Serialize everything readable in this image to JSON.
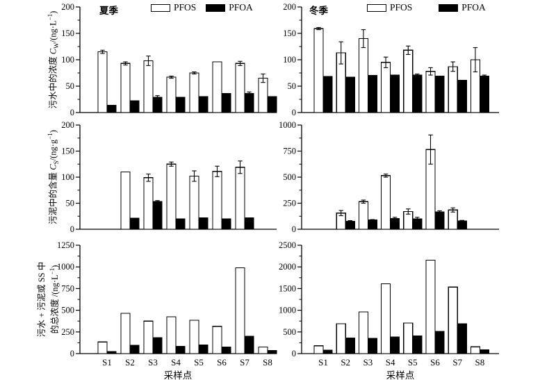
{
  "figure": {
    "xlabel": "采样点",
    "legend": {
      "pfos": "PFOS",
      "pfoa": "PFOA"
    },
    "seasons": {
      "summer": "夏季",
      "winter": "冬季"
    },
    "colors": {
      "pfos_fill": "#ffffff",
      "pfoa_fill": "#000000",
      "stroke": "#000000"
    },
    "ylabels": {
      "row1": {
        "prefix": "污水中的浓度 ",
        "var": "C",
        "sub": "W",
        "mid": "/(ng·L",
        "sup": "−1",
        "suffix": ")"
      },
      "row2": {
        "prefix": "污泥中的含量 ",
        "var": "C",
        "sub": "S",
        "mid": "/(ng·g",
        "sup": "−1",
        "suffix": ")"
      },
      "row3": {
        "line1": "污水 + 污泥或 SS 中",
        "line2_prefix": "的总浓度 /(ng·L",
        "sup": "−1",
        "suffix": ")"
      }
    }
  },
  "chart_data": [
    {
      "id": "wastewater-summer",
      "type": "bar",
      "season": "夏季",
      "ylabel": "污水中的浓度 C_W/(ng·L⁻¹)",
      "ylim": [
        0,
        200
      ],
      "yticks": [
        0,
        50,
        100,
        150,
        200
      ],
      "categories": [
        "S1",
        "S2",
        "S3",
        "S4",
        "S5",
        "S6",
        "S7",
        "S8"
      ],
      "series": [
        {
          "name": "PFOS",
          "fill": "#ffffff",
          "values": [
            115,
            93,
            98,
            67,
            75,
            96,
            93,
            65
          ],
          "errors": [
            3,
            3,
            9,
            2,
            2,
            1,
            4,
            8
          ]
        },
        {
          "name": "PFOA",
          "fill": "#000000",
          "values": [
            14,
            22,
            29,
            29,
            30,
            36,
            36,
            30
          ],
          "errors": [
            1,
            1,
            3,
            1,
            1,
            1,
            3,
            1
          ]
        }
      ],
      "show_x_labels": false
    },
    {
      "id": "wastewater-winter",
      "type": "bar",
      "season": "冬季",
      "ylabel": "污水中的浓度 C_W/(ng·L⁻¹)",
      "ylim": [
        0,
        200
      ],
      "yticks": [
        0,
        50,
        100,
        150,
        200
      ],
      "categories": [
        "S1",
        "S2",
        "S3",
        "S4",
        "S5",
        "S6",
        "S7",
        "S8"
      ],
      "series": [
        {
          "name": "PFOS",
          "fill": "#ffffff",
          "values": [
            159,
            113,
            140,
            95,
            118,
            78,
            87,
            100
          ],
          "errors": [
            2,
            21,
            17,
            10,
            8,
            7,
            9,
            23
          ]
        },
        {
          "name": "PFOA",
          "fill": "#000000",
          "values": [
            68,
            67,
            70,
            71,
            71,
            69,
            61,
            69
          ],
          "errors": [
            1,
            1,
            1,
            1,
            2,
            1,
            1,
            2
          ]
        }
      ],
      "show_x_labels": false
    },
    {
      "id": "sludge-summer",
      "type": "bar",
      "ylabel": "污泥中的含量 C_S/(ng·g⁻¹)",
      "ylim": [
        0,
        200
      ],
      "yticks": [
        0,
        50,
        100,
        150,
        200
      ],
      "categories": [
        "S1",
        "S2",
        "S3",
        "S4",
        "S5",
        "S6",
        "S7",
        "S8"
      ],
      "series": [
        {
          "name": "PFOS",
          "fill": "#ffffff",
          "values": [
            0,
            110,
            99,
            125,
            102,
            111,
            119,
            0
          ],
          "errors": [
            0,
            0,
            7,
            4,
            10,
            10,
            12,
            0
          ]
        },
        {
          "name": "PFOA",
          "fill": "#000000",
          "values": [
            0,
            21,
            53,
            20,
            22,
            20,
            22,
            0
          ],
          "errors": [
            0,
            1,
            2,
            1,
            1,
            1,
            1,
            0
          ]
        }
      ],
      "show_x_labels": false
    },
    {
      "id": "sludge-winter",
      "type": "bar",
      "ylabel": "污泥中的含量 C_S/(ng·g⁻¹)",
      "ylim": [
        0,
        1000
      ],
      "yticks": [
        0,
        250,
        500,
        750,
        1000
      ],
      "categories": [
        "S1",
        "S2",
        "S3",
        "S4",
        "S5",
        "S6",
        "S7",
        "S8"
      ],
      "series": [
        {
          "name": "PFOS",
          "fill": "#ffffff",
          "values": [
            0,
            155,
            265,
            515,
            170,
            765,
            185,
            0
          ],
          "errors": [
            0,
            25,
            15,
            15,
            25,
            140,
            20,
            0
          ]
        },
        {
          "name": "PFOA",
          "fill": "#000000",
          "values": [
            0,
            75,
            88,
            103,
            100,
            165,
            80,
            0
          ],
          "errors": [
            0,
            8,
            5,
            12,
            15,
            12,
            5,
            0
          ]
        }
      ],
      "show_x_labels": false
    },
    {
      "id": "total-summer",
      "type": "bar",
      "ylabel": "污水 + 污泥或 SS 中的总浓度 /(ng·L⁻¹)",
      "ylim": [
        0,
        1250
      ],
      "yticks": [
        0,
        250,
        500,
        750,
        1000,
        1250
      ],
      "categories": [
        "S1",
        "S2",
        "S3",
        "S4",
        "S5",
        "S6",
        "S7",
        "S8"
      ],
      "series": [
        {
          "name": "PFOS",
          "fill": "#ffffff",
          "values": [
            135,
            465,
            375,
            425,
            385,
            315,
            990,
            75
          ],
          "errors": [
            0,
            0,
            0,
            0,
            0,
            0,
            0,
            0
          ]
        },
        {
          "name": "PFOA",
          "fill": "#000000",
          "values": [
            25,
            95,
            185,
            85,
            100,
            75,
            200,
            35
          ],
          "errors": [
            0,
            0,
            0,
            0,
            0,
            0,
            0,
            0
          ]
        }
      ],
      "show_x_labels": true
    },
    {
      "id": "total-winter",
      "type": "bar",
      "ylabel": "污水 + 污泥或 SS 中的总浓度 /(ng·L⁻¹)",
      "ylim": [
        0,
        2500
      ],
      "yticks": [
        0,
        500,
        1000,
        1500,
        2000,
        2500
      ],
      "categories": [
        "S1",
        "S2",
        "S3",
        "S4",
        "S5",
        "S6",
        "S7",
        "S8"
      ],
      "series": [
        {
          "name": "PFOS",
          "fill": "#ffffff",
          "values": [
            180,
            690,
            960,
            1610,
            705,
            2155,
            1535,
            155
          ],
          "errors": [
            0,
            0,
            0,
            0,
            0,
            0,
            0,
            0
          ]
        },
        {
          "name": "PFOA",
          "fill": "#000000",
          "values": [
            80,
            355,
            350,
            380,
            410,
            515,
            690,
            85
          ],
          "errors": [
            0,
            0,
            0,
            0,
            0,
            0,
            0,
            0
          ]
        }
      ],
      "show_x_labels": true
    }
  ]
}
